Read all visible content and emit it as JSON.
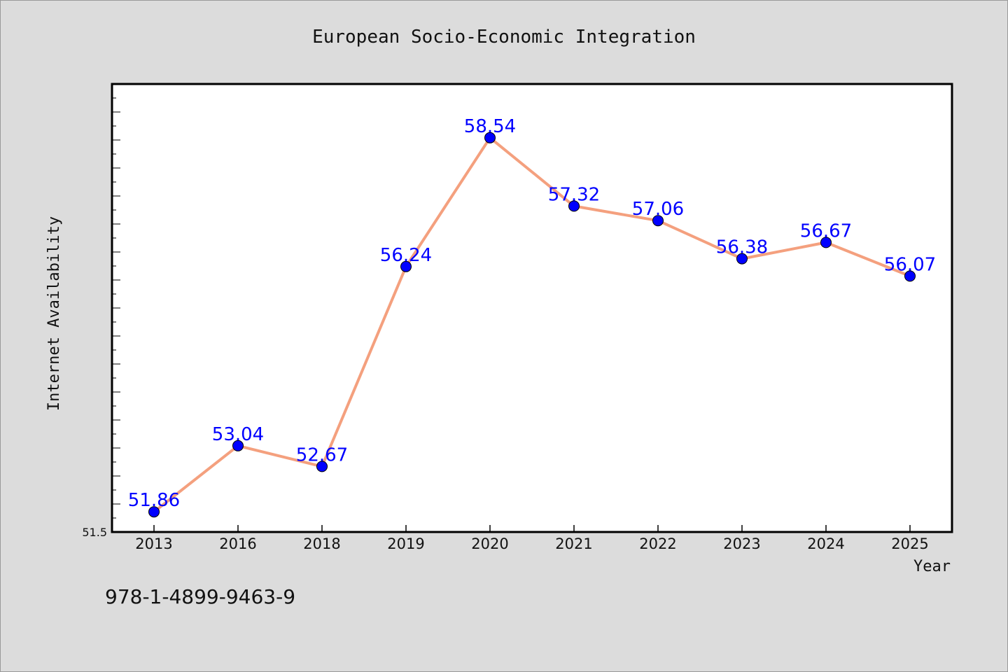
{
  "chart_data": {
    "type": "line",
    "title": "European Socio-Economic Integration",
    "xlabel": "Year",
    "ylabel": "Internet Availability",
    "categories": [
      "2013",
      "2016",
      "2018",
      "2019",
      "2020",
      "2021",
      "2022",
      "2023",
      "2024",
      "2025"
    ],
    "series": [
      {
        "values": [
          51.86,
          53.04,
          52.67,
          56.24,
          58.54,
          57.32,
          57.06,
          56.38,
          56.67,
          56.07
        ],
        "line_color": "#f4a07e",
        "marker_color": "#0000ff"
      }
    ],
    "ylim": [
      51.5,
      59.5
    ],
    "y_tick_label": "51.5",
    "grid": false,
    "legend": "none",
    "data_labels": [
      "51.86",
      "53.04",
      "52.67",
      "56.24",
      "58.54",
      "57.32",
      "57.06",
      "56.38",
      "56.67",
      "56.07"
    ]
  },
  "footer": {
    "isbn": "978-1-4899-9463-9"
  }
}
